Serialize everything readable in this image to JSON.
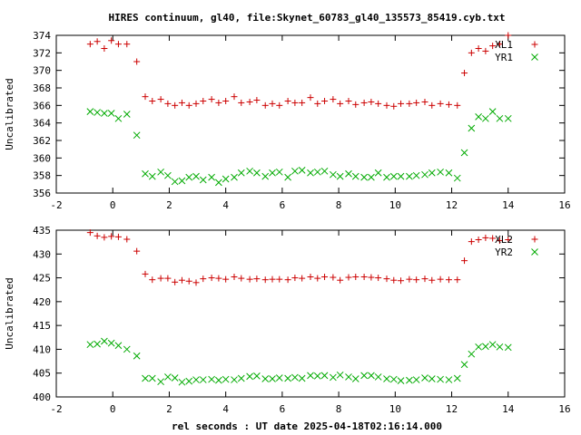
{
  "figure": {
    "title": "HIRES continuum, gl40, file:Skynet_60783_gl40_135573_85419.cyb.txt",
    "xlabel": "rel seconds : UT date 2025-04-18T02:16:14.000"
  },
  "colors": {
    "series_red": "#cc0000",
    "series_green": "#00aa00"
  },
  "chart_data": [
    {
      "type": "scatter",
      "title": "",
      "xlabel": "",
      "ylabel": "Uncalibrated",
      "xlim": [
        -2,
        16
      ],
      "ylim": [
        356,
        374
      ],
      "xticks": [
        -2,
        0,
        2,
        4,
        6,
        8,
        10,
        12,
        14,
        16
      ],
      "yticks": [
        356,
        358,
        360,
        362,
        364,
        366,
        368,
        370,
        372,
        374
      ],
      "legend": "top-right",
      "grid": false,
      "series": [
        {
          "name": "XL1",
          "marker": "plus",
          "x": [
            -0.8,
            -0.55,
            -0.3,
            -0.05,
            0.2,
            0.5,
            0.85,
            1.15,
            1.4,
            1.7,
            1.95,
            2.2,
            2.45,
            2.7,
            2.95,
            3.2,
            3.5,
            3.75,
            4.0,
            4.3,
            4.55,
            4.85,
            5.1,
            5.4,
            5.65,
            5.9,
            6.2,
            6.45,
            6.7,
            7.0,
            7.25,
            7.5,
            7.8,
            8.05,
            8.35,
            8.6,
            8.9,
            9.15,
            9.4,
            9.7,
            9.95,
            10.2,
            10.5,
            10.75,
            11.05,
            11.3,
            11.6,
            11.9,
            12.2,
            12.45,
            12.7,
            12.95,
            13.2,
            13.45,
            13.7,
            14.0
          ],
          "values": [
            373.0,
            373.3,
            372.5,
            373.4,
            373.0,
            373.0,
            371.0,
            367.0,
            366.5,
            366.7,
            366.2,
            366.0,
            366.3,
            366.0,
            366.2,
            366.5,
            366.7,
            366.3,
            366.5,
            367.0,
            366.3,
            366.4,
            366.6,
            366.0,
            366.2,
            366.0,
            366.5,
            366.3,
            366.3,
            366.9,
            366.2,
            366.5,
            366.7,
            366.2,
            366.5,
            366.1,
            366.3,
            366.4,
            366.2,
            366.0,
            365.9,
            366.2,
            366.2,
            366.3,
            366.4,
            366.0,
            366.2,
            366.1,
            366.0,
            369.7,
            372.0,
            372.5,
            372.2,
            372.8,
            373.0,
            374.0
          ]
        },
        {
          "name": "YR1",
          "marker": "cross",
          "x": [
            -0.8,
            -0.55,
            -0.3,
            -0.05,
            0.2,
            0.5,
            0.85,
            1.15,
            1.4,
            1.7,
            1.95,
            2.2,
            2.45,
            2.7,
            2.95,
            3.2,
            3.5,
            3.75,
            4.0,
            4.3,
            4.55,
            4.85,
            5.1,
            5.4,
            5.65,
            5.9,
            6.2,
            6.45,
            6.7,
            7.0,
            7.25,
            7.5,
            7.8,
            8.05,
            8.35,
            8.6,
            8.9,
            9.15,
            9.4,
            9.7,
            9.95,
            10.2,
            10.5,
            10.75,
            11.05,
            11.3,
            11.6,
            11.9,
            12.2,
            12.45,
            12.7,
            12.95,
            13.2,
            13.45,
            13.7,
            14.0
          ],
          "values": [
            365.3,
            365.2,
            365.1,
            365.1,
            364.5,
            365.0,
            362.6,
            358.2,
            357.9,
            358.4,
            358.0,
            357.3,
            357.4,
            357.8,
            357.9,
            357.5,
            357.8,
            357.2,
            357.6,
            357.8,
            358.3,
            358.5,
            358.3,
            357.9,
            358.3,
            358.4,
            357.8,
            358.5,
            358.6,
            358.3,
            358.4,
            358.5,
            358.1,
            357.9,
            358.2,
            357.9,
            357.8,
            357.8,
            358.3,
            357.8,
            357.9,
            357.9,
            357.9,
            358.0,
            358.1,
            358.3,
            358.4,
            358.3,
            357.7,
            360.6,
            363.4,
            364.7,
            364.5,
            365.3,
            364.5,
            364.5
          ]
        }
      ]
    },
    {
      "type": "scatter",
      "title": "",
      "xlabel": "",
      "ylabel": "Uncalibrated",
      "xlim": [
        -2,
        16
      ],
      "ylim": [
        400,
        435
      ],
      "xticks": [
        -2,
        0,
        2,
        4,
        6,
        8,
        10,
        12,
        14,
        16
      ],
      "yticks": [
        400,
        405,
        410,
        415,
        420,
        425,
        430,
        435
      ],
      "legend": "top-right",
      "grid": false,
      "series": [
        {
          "name": "XL2",
          "marker": "plus",
          "x": [
            -0.8,
            -0.55,
            -0.3,
            -0.05,
            0.2,
            0.5,
            0.85,
            1.15,
            1.4,
            1.7,
            1.95,
            2.2,
            2.45,
            2.7,
            2.95,
            3.2,
            3.5,
            3.75,
            4.0,
            4.3,
            4.55,
            4.85,
            5.1,
            5.4,
            5.65,
            5.9,
            6.2,
            6.45,
            6.7,
            7.0,
            7.25,
            7.5,
            7.8,
            8.05,
            8.35,
            8.6,
            8.9,
            9.15,
            9.4,
            9.7,
            9.95,
            10.2,
            10.5,
            10.75,
            11.05,
            11.3,
            11.6,
            11.9,
            12.2,
            12.45,
            12.7,
            12.95,
            13.2,
            13.45,
            13.7,
            14.0
          ],
          "values": [
            434.5,
            433.8,
            433.5,
            433.7,
            433.6,
            433.1,
            430.6,
            425.8,
            424.6,
            424.9,
            424.9,
            424.1,
            424.5,
            424.3,
            424.0,
            424.8,
            425.0,
            424.9,
            424.7,
            425.2,
            424.9,
            424.7,
            424.8,
            424.6,
            424.7,
            424.7,
            424.6,
            425.0,
            424.9,
            425.2,
            424.9,
            425.2,
            425.1,
            424.5,
            425.1,
            425.2,
            425.2,
            425.1,
            425.0,
            424.8,
            424.5,
            424.4,
            424.7,
            424.6,
            424.8,
            424.5,
            424.7,
            424.6,
            424.6,
            428.6,
            432.6,
            433.0,
            433.4,
            433.3,
            432.8,
            433.0
          ]
        },
        {
          "name": "YR2",
          "marker": "cross",
          "x": [
            -0.8,
            -0.55,
            -0.3,
            -0.05,
            0.2,
            0.5,
            0.85,
            1.15,
            1.4,
            1.7,
            1.95,
            2.2,
            2.45,
            2.7,
            2.95,
            3.2,
            3.5,
            3.75,
            4.0,
            4.3,
            4.55,
            4.85,
            5.1,
            5.4,
            5.65,
            5.9,
            6.2,
            6.45,
            6.7,
            7.0,
            7.25,
            7.5,
            7.8,
            8.05,
            8.35,
            8.6,
            8.9,
            9.15,
            9.4,
            9.7,
            9.95,
            10.2,
            10.5,
            10.75,
            11.05,
            11.3,
            11.6,
            11.9,
            12.2,
            12.45,
            12.7,
            12.95,
            13.2,
            13.45,
            13.7,
            14.0
          ],
          "values": [
            411.0,
            411.1,
            411.7,
            411.3,
            410.8,
            410.0,
            408.6,
            403.9,
            403.9,
            403.2,
            404.2,
            404.0,
            403.1,
            403.3,
            403.6,
            403.6,
            403.7,
            403.5,
            403.7,
            403.6,
            403.9,
            404.3,
            404.4,
            403.8,
            403.8,
            404.0,
            403.9,
            404.1,
            403.9,
            404.5,
            404.4,
            404.5,
            404.1,
            404.6,
            404.2,
            403.8,
            404.5,
            404.5,
            404.2,
            403.8,
            403.7,
            403.4,
            403.5,
            403.6,
            404.0,
            403.8,
            403.7,
            403.6,
            403.9,
            406.8,
            409.0,
            410.5,
            410.6,
            411.0,
            410.5,
            410.4
          ]
        }
      ]
    }
  ]
}
